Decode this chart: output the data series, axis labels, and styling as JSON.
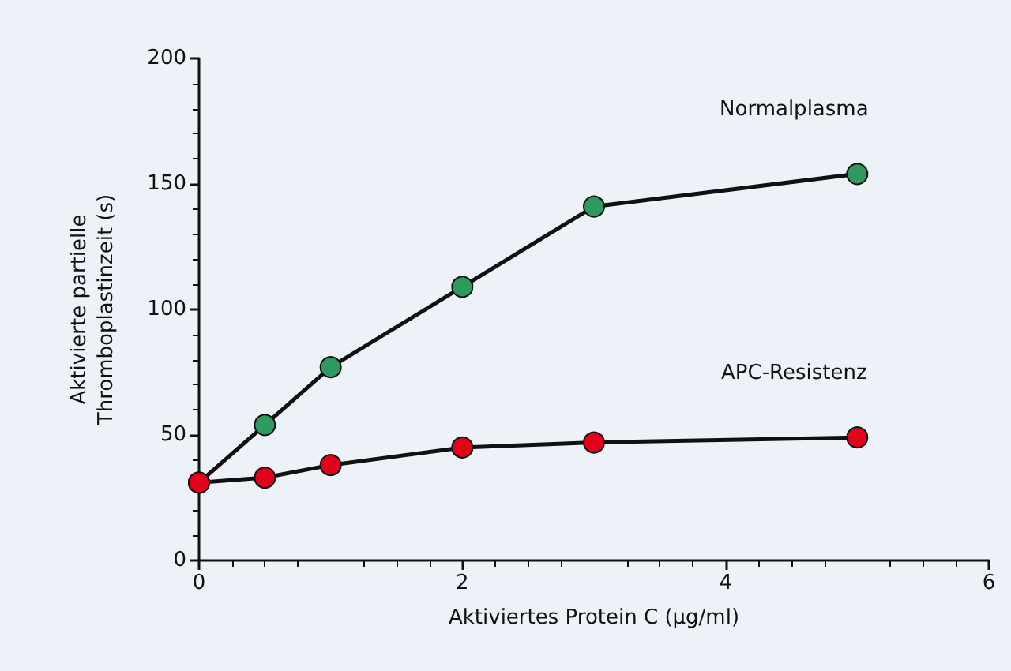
{
  "chart_data": {
    "type": "line",
    "xlabel": "Aktiviertes Protein C (µg/ml)",
    "ylabel": "Aktivierte partielle\nThromboplastinzeit (s)",
    "x": [
      0,
      0.5,
      1,
      2,
      3,
      5
    ],
    "series": [
      {
        "name": "Normalplasma",
        "color": "#2e9a5e",
        "values": [
          31,
          54,
          77,
          109,
          141,
          154
        ]
      },
      {
        "name": "APC-Resistenz",
        "color": "#e3001b",
        "values": [
          31,
          33,
          38,
          45,
          47,
          49
        ]
      }
    ],
    "xlim": [
      0,
      6
    ],
    "xticks": [
      0,
      2,
      4,
      6
    ],
    "ylim": [
      0,
      200
    ],
    "yticks": [
      0,
      50,
      100,
      150,
      200
    ],
    "grid": false,
    "legend": false,
    "marker": "circle",
    "line_style": "solid"
  }
}
